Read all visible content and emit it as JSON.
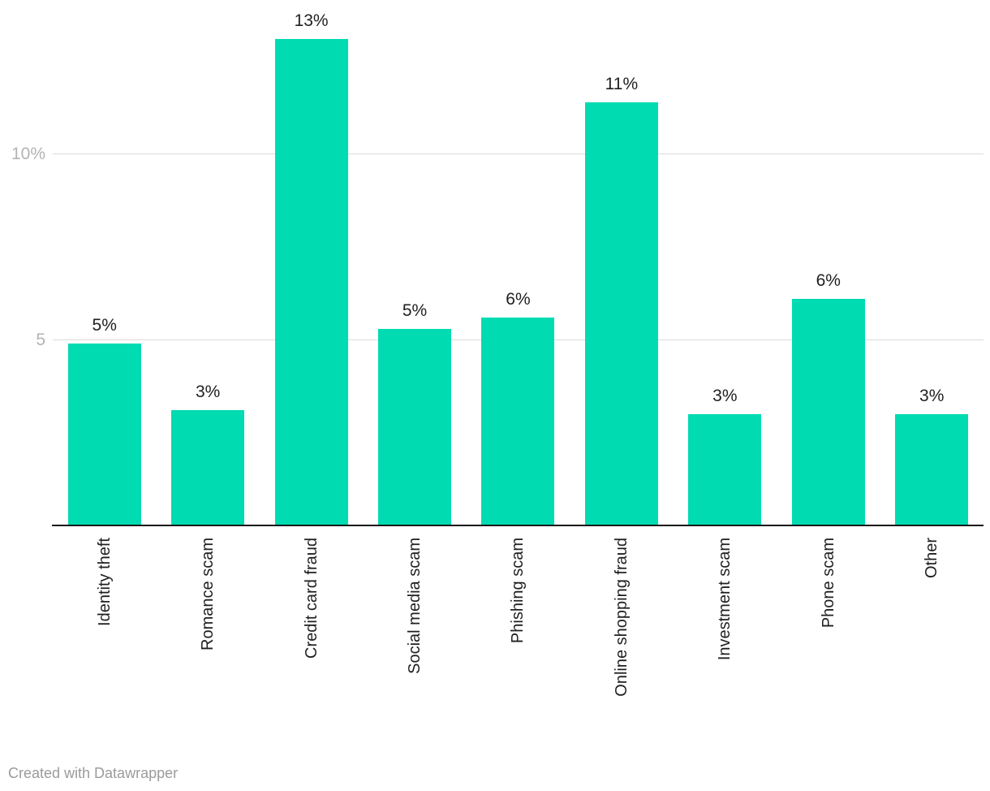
{
  "chart_data": {
    "type": "bar",
    "categories": [
      "Identity theft",
      "Romance scam",
      "Credit card fraud",
      "Social media scam",
      "Phishing scam",
      "Online shopping fraud",
      "Investment scam",
      "Phone scam",
      "Other"
    ],
    "values": [
      4.9,
      3.1,
      13.1,
      5.3,
      5.6,
      11.4,
      3.0,
      6.1,
      3.0
    ],
    "labels": [
      "5%",
      "3%",
      "13%",
      "5%",
      "6%",
      "11%",
      "3%",
      "6%",
      "3%"
    ],
    "title": "",
    "xlabel": "",
    "ylabel": "",
    "ylim": [
      0,
      14.2
    ],
    "yticks": [
      {
        "value": 5,
        "label": "5"
      },
      {
        "value": 10,
        "label": "10%"
      }
    ],
    "grid": true,
    "legend": "none",
    "bar_color": "#00dbb1",
    "label_rotation": -90
  },
  "colors": {
    "bar": "#00dbb1",
    "gridline": "#dcdcdc",
    "axis_line": "#191919",
    "tick_label": "#b3b3b3",
    "text": "#1f1f1f",
    "footer_text": "#9b9b9b",
    "background": "#ffffff"
  },
  "footer": {
    "credit": "Created with Datawrapper"
  }
}
